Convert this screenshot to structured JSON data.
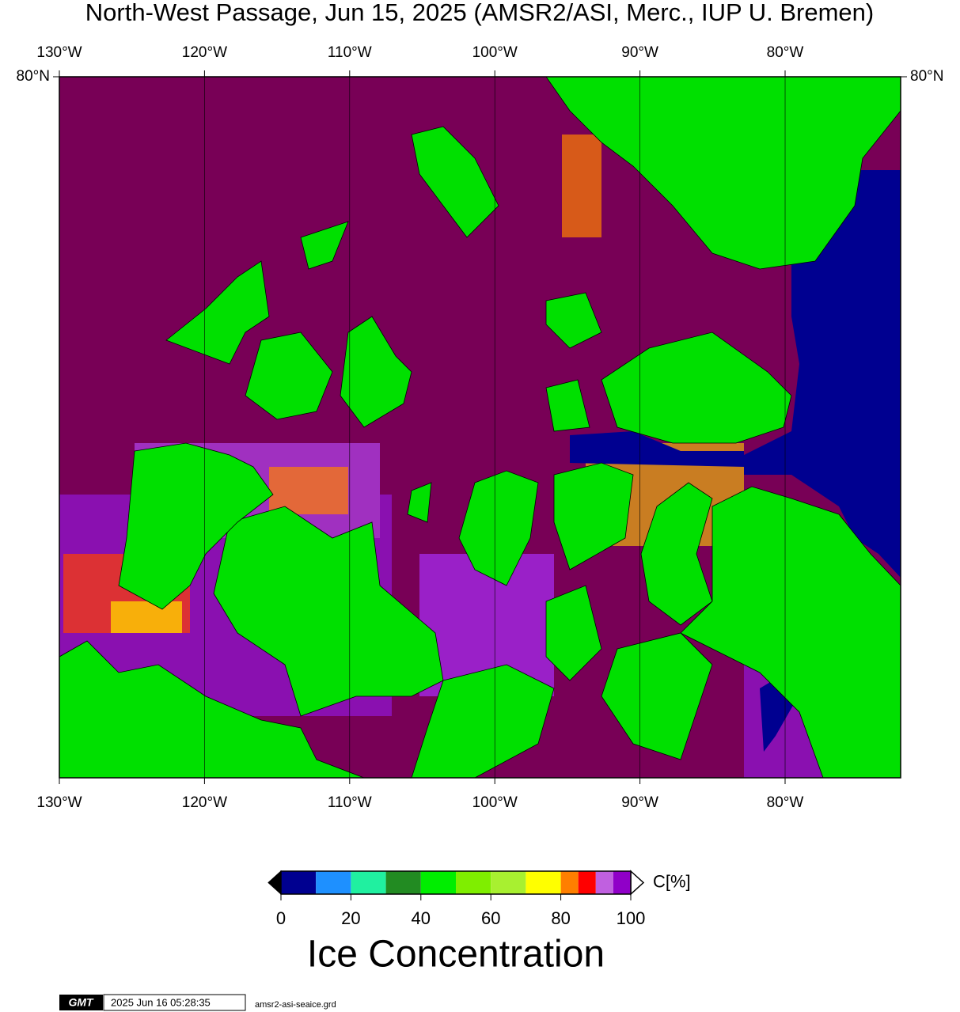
{
  "chart_data": {
    "type": "map",
    "title": "North-West Passage, Jun 15, 2025 (AMSR2/ASI, Merc., IUP U. Bremen)",
    "xlim": [
      -130,
      -72.04
    ],
    "xticks": [
      {
        "value": -130,
        "label": "130°W"
      },
      {
        "value": -120,
        "label": "120°W"
      },
      {
        "value": -110,
        "label": "110°W"
      },
      {
        "value": -100,
        "label": "100°W"
      },
      {
        "value": -90,
        "label": "90°W"
      },
      {
        "value": -80,
        "label": "80°W"
      }
    ],
    "ylim": [
      67.5,
      80
    ],
    "yticks": [
      {
        "value": 80,
        "label": "80°N"
      }
    ],
    "grid": true,
    "colorbar": {
      "label": "C[%]",
      "title": "Ice Concentration",
      "range": [
        0,
        100
      ],
      "bounds": [
        0,
        10,
        20,
        30,
        40,
        50,
        60,
        70,
        80,
        85,
        90,
        95,
        100
      ],
      "colors": [
        "#000090",
        "#1e90ff",
        "#20f0a0",
        "#228b22",
        "#00ee00",
        "#7fee00",
        "#a8f030",
        "#ffff00",
        "#ff7f00",
        "#ff0000",
        "#c060e0",
        "#9000c8"
      ],
      "ticks": [
        0,
        20,
        40,
        60,
        80,
        100
      ]
    },
    "footer": {
      "logo": "GMT",
      "timestamp": "2025 Jun 16 05:28:35",
      "file": "amsr2-asi-seaice.grd"
    }
  }
}
